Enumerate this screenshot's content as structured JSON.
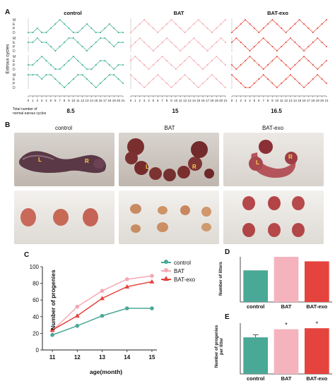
{
  "panel_a": {
    "label": "A",
    "groups": [
      {
        "name": "control",
        "color": "#3cae94",
        "total": "8.5"
      },
      {
        "name": "BAT",
        "color": "#f2a7ac",
        "total": "15"
      },
      {
        "name": "BAT-exo",
        "color": "#e24a3a",
        "total": "16.5"
      }
    ],
    "y_axis_title": "Estrous cycles",
    "stage_letters": [
      "M",
      "E",
      "P",
      "D"
    ],
    "days": [
      "0",
      "1",
      "2",
      "3",
      "4",
      "5",
      "6",
      "7",
      "8",
      "9",
      "10",
      "11",
      "12",
      "13",
      "14",
      "15",
      "16",
      "17",
      "18",
      "19",
      "20",
      "21"
    ],
    "total_label_line1": "Total number of",
    "total_label_line2": "normal earous cycles"
  },
  "panel_b": {
    "label": "B",
    "photos": [
      {
        "name": "control",
        "marks": [
          "L",
          "R"
        ]
      },
      {
        "name": "BAT",
        "marks": [
          "L",
          "R"
        ]
      },
      {
        "name": "BAT-exo",
        "marks": [
          "L",
          "R"
        ]
      }
    ]
  },
  "panel_c": {
    "label": "C"
  },
  "panel_d": {
    "label": "D"
  },
  "panel_e": {
    "label": "E"
  },
  "chart_data": [
    {
      "type": "line",
      "x": [
        11,
        12,
        13,
        14,
        15
      ],
      "xlabel": "age(month)",
      "ylabel": "Number of progenies",
      "ylim": [
        0,
        100
      ],
      "yticks": [
        0,
        20,
        40,
        60,
        80,
        100
      ],
      "legend": "right",
      "series": [
        {
          "name": "control",
          "color": "#4aa896",
          "values": [
            18,
            29,
            41,
            50,
            50
          ]
        },
        {
          "name": "BAT",
          "color": "#f4a9b3",
          "values": [
            23,
            52,
            71,
            85,
            89
          ]
        },
        {
          "name": "BAT-exo",
          "color": "#e5433d",
          "values": [
            24,
            41,
            62,
            76,
            82
          ]
        }
      ]
    },
    {
      "type": "bar",
      "categories": [
        "control",
        "BAT",
        "BAT-exo"
      ],
      "colors": [
        "#4aa896",
        "#f5b3bd",
        "#e5433d"
      ],
      "values": [
        14,
        20,
        18
      ],
      "ylabel": "Number of litters",
      "ylim": [
        0,
        20
      ]
    },
    {
      "type": "bar",
      "categories": [
        "control",
        "BAT",
        "BAT-exo"
      ],
      "colors": [
        "#4aa896",
        "#f5b3bd",
        "#e5433d"
      ],
      "values": [
        3.6,
        4.4,
        4.5
      ],
      "errors": [
        0.25,
        0,
        0
      ],
      "significance": [
        "",
        "*",
        "*"
      ],
      "ylabel": "Number of progenies per litter",
      "ylim": [
        0,
        5
      ]
    }
  ]
}
